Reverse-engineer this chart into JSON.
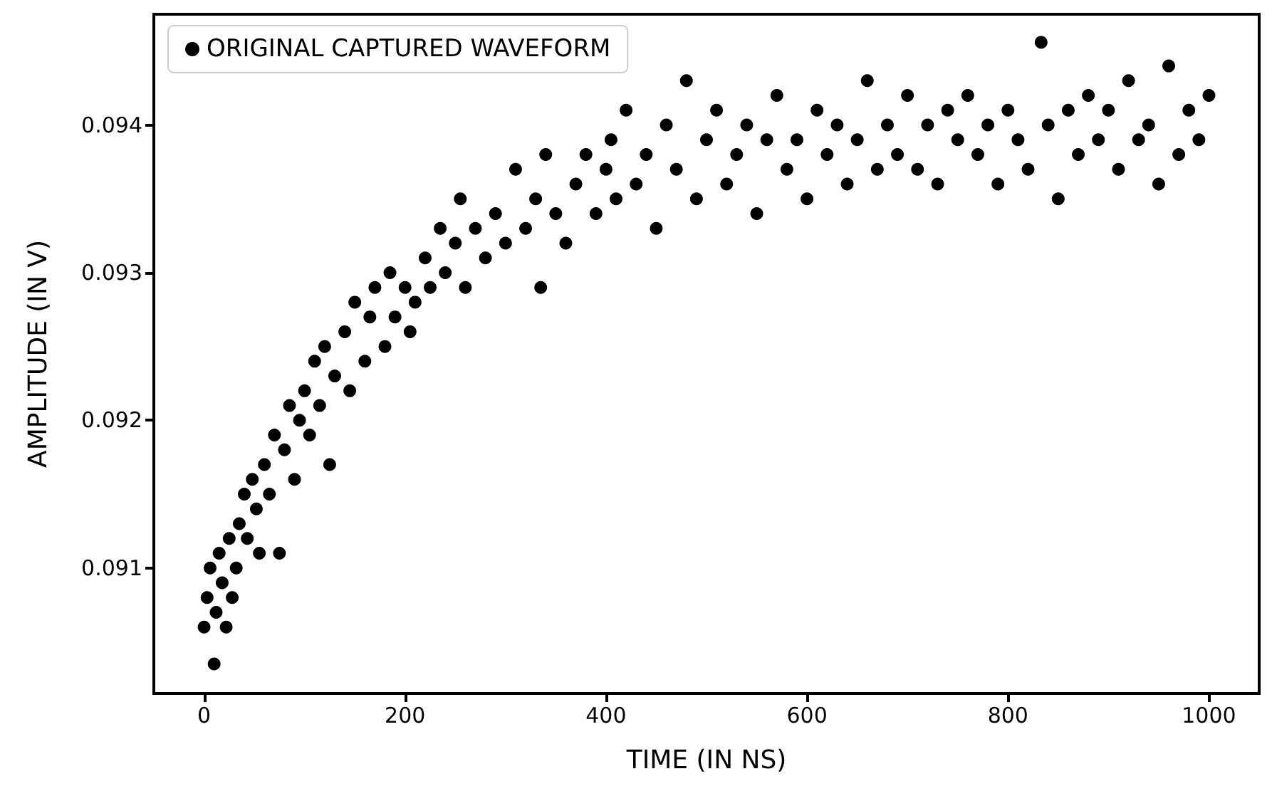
{
  "chart_data": {
    "type": "scatter",
    "xlabel": "TIME (IN NS)",
    "ylabel": "AMPLITUDE (IN V)",
    "xlim": [
      -50,
      1050
    ],
    "xticks": [
      0,
      200,
      400,
      600,
      800,
      1000
    ],
    "ylim": [
      0.09015,
      0.09475
    ],
    "yticks": [
      0.091,
      0.092,
      0.093,
      0.094
    ],
    "grid": false,
    "legend": "top left",
    "marker": "circle",
    "series": [
      {
        "name": "ORIGINAL CAPTURED WAVEFORM",
        "color": "#000000",
        "x": [
          0,
          3,
          6,
          10,
          12,
          15,
          18,
          22,
          25,
          28,
          32,
          35,
          40,
          43,
          48,
          52,
          55,
          60,
          65,
          70,
          75,
          80,
          85,
          90,
          95,
          100,
          105,
          110,
          115,
          120,
          125,
          130,
          140,
          145,
          150,
          160,
          165,
          170,
          180,
          185,
          190,
          200,
          205,
          210,
          220,
          225,
          235,
          240,
          250,
          255,
          260,
          270,
          280,
          290,
          300,
          310,
          320,
          330,
          335,
          340,
          350,
          360,
          370,
          380,
          390,
          400,
          405,
          410,
          420,
          430,
          440,
          450,
          460,
          470,
          480,
          490,
          500,
          510,
          520,
          530,
          540,
          550,
          560,
          570,
          580,
          590,
          600,
          610,
          620,
          630,
          640,
          650,
          660,
          670,
          680,
          690,
          700,
          710,
          720,
          730,
          740,
          750,
          760,
          770,
          780,
          790,
          800,
          810,
          820,
          833,
          840,
          850,
          860,
          870,
          880,
          890,
          900,
          910,
          920,
          930,
          940,
          950,
          960,
          970,
          980,
          990,
          1000
        ],
        "values": [
          0.0906,
          0.0908,
          0.091,
          0.09035,
          0.0907,
          0.0911,
          0.0909,
          0.0906,
          0.0912,
          0.0908,
          0.091,
          0.0913,
          0.0915,
          0.0912,
          0.0916,
          0.0914,
          0.0911,
          0.0917,
          0.0915,
          0.0919,
          0.0911,
          0.0918,
          0.0921,
          0.0916,
          0.092,
          0.0922,
          0.0919,
          0.0924,
          0.0921,
          0.0925,
          0.0917,
          0.0923,
          0.0926,
          0.0922,
          0.0928,
          0.0924,
          0.0927,
          0.0929,
          0.0925,
          0.093,
          0.0927,
          0.0929,
          0.0926,
          0.0928,
          0.0931,
          0.0929,
          0.0933,
          0.093,
          0.0932,
          0.0935,
          0.0929,
          0.0933,
          0.0931,
          0.0934,
          0.0932,
          0.0937,
          0.0933,
          0.0935,
          0.0929,
          0.0938,
          0.0934,
          0.0932,
          0.0936,
          0.0938,
          0.0934,
          0.0937,
          0.0939,
          0.0935,
          0.0941,
          0.0936,
          0.0938,
          0.0933,
          0.094,
          0.0937,
          0.0943,
          0.0935,
          0.0939,
          0.0941,
          0.0936,
          0.0938,
          0.094,
          0.0934,
          0.0939,
          0.0942,
          0.0937,
          0.0939,
          0.0935,
          0.0941,
          0.0938,
          0.094,
          0.0936,
          0.0939,
          0.0943,
          0.0937,
          0.094,
          0.0938,
          0.0942,
          0.0937,
          0.094,
          0.0936,
          0.0941,
          0.0939,
          0.0942,
          0.0938,
          0.094,
          0.0936,
          0.0941,
          0.0939,
          0.0937,
          0.09456,
          0.094,
          0.0935,
          0.0941,
          0.0938,
          0.0942,
          0.0939,
          0.0941,
          0.0937,
          0.0943,
          0.0939,
          0.094,
          0.0936,
          0.0944,
          0.0938,
          0.0941,
          0.0939,
          0.0942
        ]
      }
    ]
  }
}
